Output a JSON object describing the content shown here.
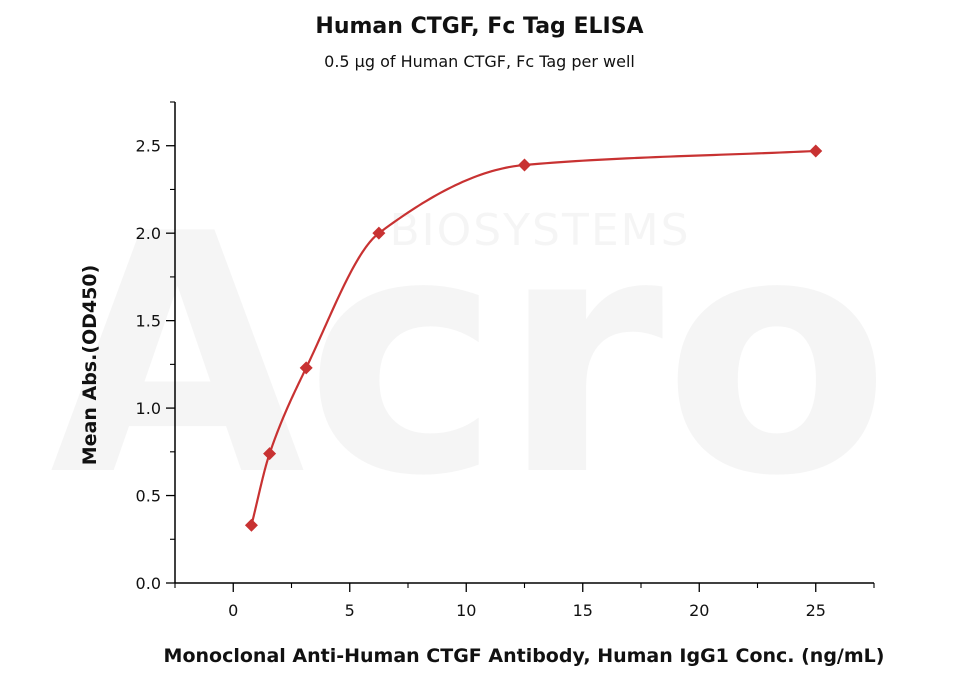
{
  "chart_data": {
    "type": "scatter",
    "title": "Human CTGF, Fc Tag ELISA",
    "subtitle": "0.5 μg of Human CTGF, Fc Tag per well",
    "xlabel": "Monoclonal Anti-Human CTGF Antibody, Human IgG1 Conc. (ng/mL)",
    "ylabel": "Mean Abs.(OD450)",
    "xlim": [
      -2.5,
      27.5
    ],
    "ylim": [
      0,
      2.75
    ],
    "xticks": [
      0,
      5,
      10,
      15,
      20,
      25
    ],
    "xtick_labels": [
      "0",
      "5",
      "10",
      "15",
      "20",
      "25"
    ],
    "yticks": [
      0,
      0.5,
      1.0,
      1.5,
      2.0,
      2.5
    ],
    "ytick_labels": [
      "0.0",
      "0.5",
      "1.0",
      "1.5",
      "2.0",
      "2.5"
    ],
    "grid": false,
    "series": [
      {
        "x": [
          0.78,
          1.56,
          3.13,
          6.25,
          12.5,
          25
        ],
        "y": [
          0.33,
          0.74,
          1.23,
          2.0,
          2.39,
          2.47
        ],
        "color": "#c83232",
        "marker": "diamond",
        "fit_curve": true
      }
    ]
  },
  "watermark": {
    "brand_text": "Acro",
    "sub_text": "BIOSYSTEMS"
  }
}
